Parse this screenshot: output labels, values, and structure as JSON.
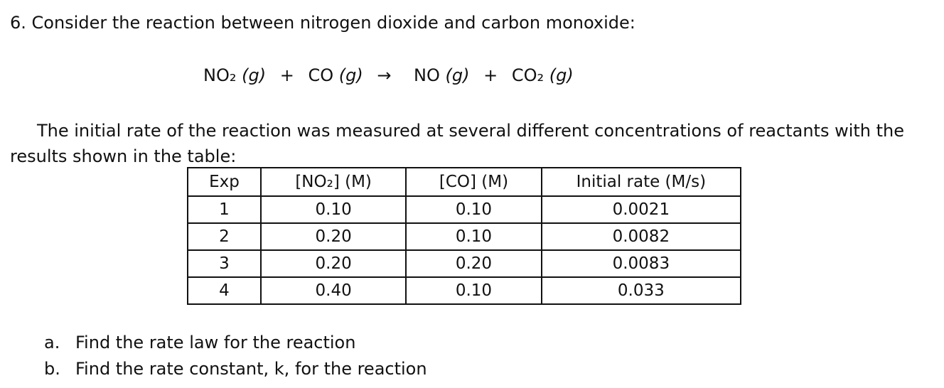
{
  "question": {
    "title": "6. Consider the reaction between nitrogen dioxide and carbon monoxide:"
  },
  "equation": {
    "reactant1": "NO₂",
    "reactant1_state": "(g)",
    "plus1": "+",
    "reactant2": "CO",
    "reactant2_state": "(g)",
    "arrow": "→",
    "product1": "NO",
    "product1_state": "(g)",
    "plus2": "+",
    "product2": "CO₂",
    "product2_state": "(g)"
  },
  "intro": "The initial rate of the reaction was measured at several different concentrations of reactants with the results shown in the table:",
  "table": {
    "headers": [
      "Exp",
      "[NO₂] (M)",
      "[CO] (M)",
      "Initial rate (M/s)"
    ],
    "rows": [
      [
        "1",
        "0.10",
        "0.10",
        "0.0021"
      ],
      [
        "2",
        "0.20",
        "0.10",
        "0.0082"
      ],
      [
        "3",
        "0.20",
        "0.20",
        "0.0083"
      ],
      [
        "4",
        "0.40",
        "0.10",
        "0.033"
      ]
    ]
  },
  "parts": [
    {
      "letter": "a.",
      "text": "Find the rate law for the reaction"
    },
    {
      "letter": "b.",
      "text": "Find the rate constant, k, for the reaction"
    }
  ]
}
